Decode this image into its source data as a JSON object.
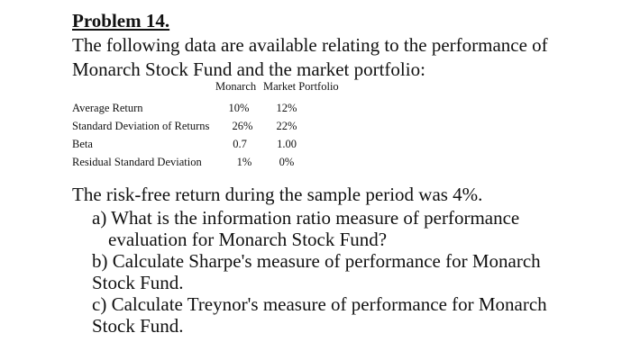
{
  "problem": {
    "title": "Problem 14.",
    "intro_lines": [
      "The following data are available relating to the performance of",
      "Monarch Stock Fund and the market portfolio:"
    ]
  },
  "table": {
    "headers": [
      "Monarch",
      "Market Portfolio"
    ],
    "rows": [
      {
        "label": "Average Return",
        "monarch": "10%",
        "market": "12%"
      },
      {
        "label": "Standard Deviation of Returns",
        "monarch": "26%",
        "market": "22%"
      },
      {
        "label": "Beta",
        "monarch": "0.7",
        "market": "1.00"
      },
      {
        "label": "Residual Standard Deviation",
        "monarch": "1%",
        "market": "0%"
      }
    ]
  },
  "risk_free_statement": "The risk-free return during the sample period was 4%.",
  "questions": [
    {
      "lines": [
        "a) What is the information ratio measure of performance",
        "evaluation for Monarch Stock Fund?"
      ]
    },
    {
      "lines": [
        "b) Calculate Sharpe's measure of performance for Monarch",
        "Stock Fund."
      ]
    },
    {
      "lines": [
        "c) Calculate Treynor's measure of performance for Monarch",
        "Stock Fund."
      ]
    }
  ]
}
